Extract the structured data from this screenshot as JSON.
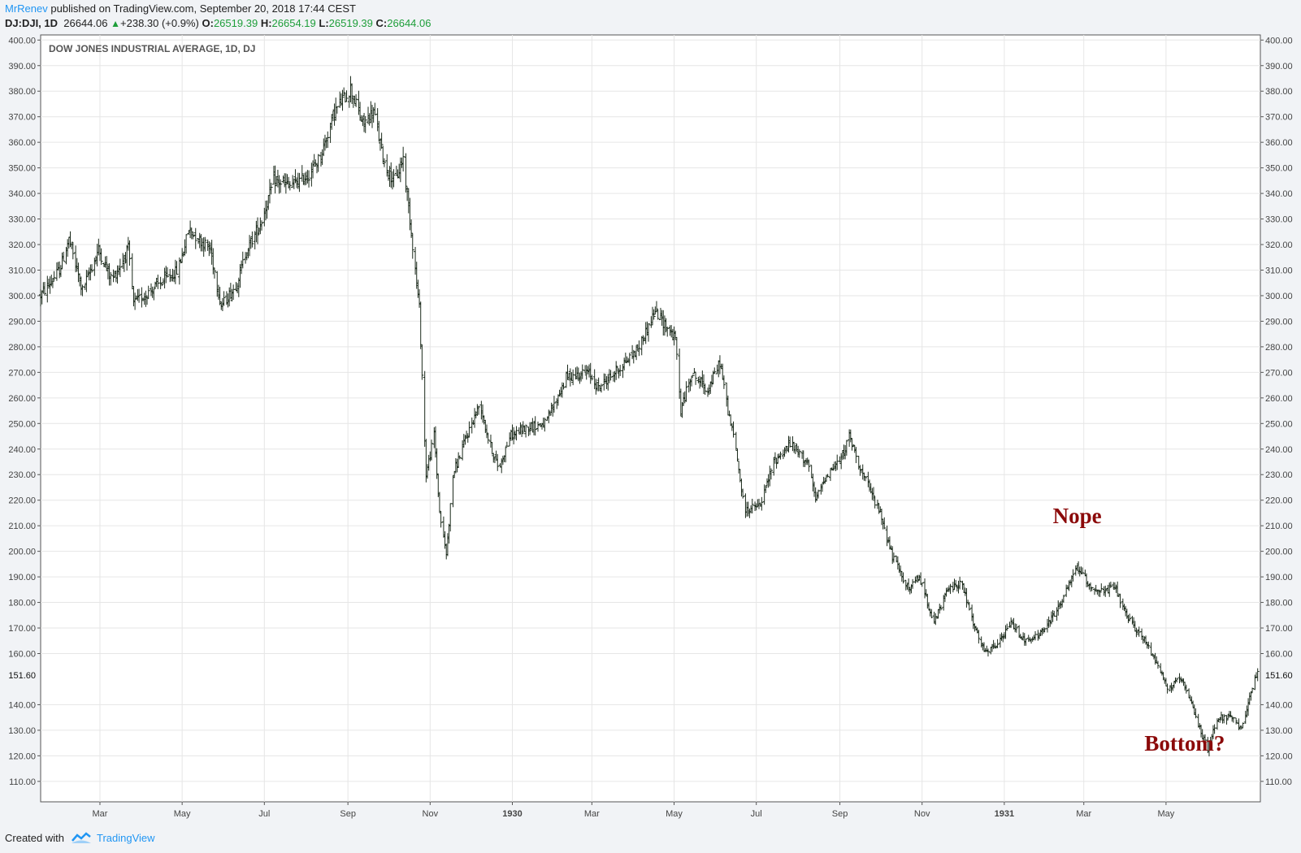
{
  "header": {
    "author": "MrRenev",
    "published_text": "published on TradingView.com, September 20, 2018 17:44 CEST",
    "symbol_line": "DJ:DJI, 1D",
    "last": "26644.06",
    "change": "+238.30 (+0.9%)",
    "o_label": "O:",
    "o_value": "26519.39",
    "h_label": "H:",
    "h_value": "26654.19",
    "l_label": "L:",
    "l_value": "26519.39",
    "c_label": "C:",
    "c_value": "26644.06"
  },
  "footer": {
    "created_with": "Created with",
    "brand": "TradingView"
  },
  "colors": {
    "bar": "#1b2a1b",
    "annotation": "#8b0a0a",
    "grid": "#e6e6e6",
    "axis_text": "#444444",
    "author": "#2196f3",
    "up": "#1e9e3a"
  },
  "chart_data": {
    "type": "ohlc",
    "title": "DOW JONES INDUSTRIAL AVERAGE, 1D, DJ",
    "ylim": [
      102,
      402
    ],
    "y_ticks": [
      "110.00",
      "120.00",
      "130.00",
      "140.00",
      "160.00",
      "170.00",
      "180.00",
      "190.00",
      "200.00",
      "210.00",
      "220.00",
      "230.00",
      "240.00",
      "250.00",
      "260.00",
      "270.00",
      "280.00",
      "290.00",
      "300.00",
      "310.00",
      "320.00",
      "330.00",
      "340.00",
      "350.00",
      "360.00",
      "370.00",
      "380.00",
      "390.00",
      "400.00"
    ],
    "last_price_label": "151.60",
    "last_price": 151.6,
    "x_ticks": [
      {
        "label": "Mar",
        "date": "1929-03-01"
      },
      {
        "label": "May",
        "date": "1929-05-01"
      },
      {
        "label": "Jul",
        "date": "1929-07-01"
      },
      {
        "label": "Sep",
        "date": "1929-09-01"
      },
      {
        "label": "Nov",
        "date": "1929-11-01"
      },
      {
        "label": "1930",
        "date": "1930-01-01",
        "bold": true
      },
      {
        "label": "Mar",
        "date": "1930-03-01"
      },
      {
        "label": "May",
        "date": "1930-05-01"
      },
      {
        "label": "Jul",
        "date": "1930-07-01"
      },
      {
        "label": "Sep",
        "date": "1930-09-01"
      },
      {
        "label": "Nov",
        "date": "1930-11-01"
      },
      {
        "label": "1931",
        "date": "1931-01-01",
        "bold": true
      },
      {
        "label": "Mar",
        "date": "1931-03-01"
      },
      {
        "label": "May",
        "date": "1931-05-01"
      }
    ],
    "x_range": [
      "1929-01-16",
      "1931-07-10"
    ],
    "path_anchors": [
      [
        "1929-01-16",
        300
      ],
      [
        "1929-01-30",
        310
      ],
      [
        "1929-02-06",
        322
      ],
      [
        "1929-02-16",
        302
      ],
      [
        "1929-02-28",
        318
      ],
      [
        "1929-03-10",
        306
      ],
      [
        "1929-03-22",
        318
      ],
      [
        "1929-03-26",
        297
      ],
      [
        "1929-04-10",
        303
      ],
      [
        "1929-04-28",
        310
      ],
      [
        "1929-05-06",
        326
      ],
      [
        "1929-05-22",
        318
      ],
      [
        "1929-05-30",
        296
      ],
      [
        "1929-06-10",
        304
      ],
      [
        "1929-06-18",
        318
      ],
      [
        "1929-06-28",
        328
      ],
      [
        "1929-07-08",
        345
      ],
      [
        "1929-07-20",
        343
      ],
      [
        "1929-07-28",
        345
      ],
      [
        "1929-08-04",
        348
      ],
      [
        "1929-08-12",
        355
      ],
      [
        "1929-08-22",
        372
      ],
      [
        "1929-09-03",
        381
      ],
      [
        "1929-09-12",
        367
      ],
      [
        "1929-09-20",
        372
      ],
      [
        "1929-09-28",
        352
      ],
      [
        "1929-10-06",
        344
      ],
      [
        "1929-10-12",
        354
      ],
      [
        "1929-10-18",
        325
      ],
      [
        "1929-10-24",
        295
      ],
      [
        "1929-10-29",
        230
      ],
      [
        "1929-11-04",
        246
      ],
      [
        "1929-11-08",
        215
      ],
      [
        "1929-11-13",
        199
      ],
      [
        "1929-11-18",
        230
      ],
      [
        "1929-11-28",
        245
      ],
      [
        "1929-12-08",
        258
      ],
      [
        "1929-12-14",
        244
      ],
      [
        "1929-12-22",
        232
      ],
      [
        "1929-12-30",
        245
      ],
      [
        "1930-01-14",
        249
      ],
      [
        "1930-01-26",
        250
      ],
      [
        "1930-02-10",
        268
      ],
      [
        "1930-02-26",
        270
      ],
      [
        "1930-03-06",
        264
      ],
      [
        "1930-03-20",
        271
      ],
      [
        "1930-04-04",
        279
      ],
      [
        "1930-04-17",
        294
      ],
      [
        "1930-05-02",
        283
      ],
      [
        "1930-05-06",
        255
      ],
      [
        "1930-05-14",
        270
      ],
      [
        "1930-05-26",
        263
      ],
      [
        "1930-06-04",
        274
      ],
      [
        "1930-06-10",
        255
      ],
      [
        "1930-06-16",
        240
      ],
      [
        "1930-06-22",
        216
      ],
      [
        "1930-07-04",
        218
      ],
      [
        "1930-07-14",
        235
      ],
      [
        "1930-07-26",
        242
      ],
      [
        "1930-08-08",
        235
      ],
      [
        "1930-08-14",
        220
      ],
      [
        "1930-08-22",
        230
      ],
      [
        "1930-09-02",
        236
      ],
      [
        "1930-09-08",
        245
      ],
      [
        "1930-09-18",
        230
      ],
      [
        "1930-10-01",
        215
      ],
      [
        "1930-10-10",
        198
      ],
      [
        "1930-10-22",
        185
      ],
      [
        "1930-10-30",
        190
      ],
      [
        "1930-11-10",
        172
      ],
      [
        "1930-11-20",
        185
      ],
      [
        "1930-11-30",
        188
      ],
      [
        "1930-12-10",
        170
      ],
      [
        "1930-12-18",
        160
      ],
      [
        "1930-12-28",
        164
      ],
      [
        "1931-01-06",
        172
      ],
      [
        "1931-01-18",
        164
      ],
      [
        "1931-02-01",
        170
      ],
      [
        "1931-02-14",
        182
      ],
      [
        "1931-02-24",
        194
      ],
      [
        "1931-03-06",
        186
      ],
      [
        "1931-03-16",
        184
      ],
      [
        "1931-03-24",
        186
      ],
      [
        "1931-04-02",
        174
      ],
      [
        "1931-04-14",
        166
      ],
      [
        "1931-04-26",
        155
      ],
      [
        "1931-05-02",
        146
      ],
      [
        "1931-05-12",
        150
      ],
      [
        "1931-05-20",
        140
      ],
      [
        "1931-06-01",
        122
      ],
      [
        "1931-06-08",
        135
      ],
      [
        "1931-06-18",
        135
      ],
      [
        "1931-06-26",
        130
      ],
      [
        "1931-07-02",
        144
      ],
      [
        "1931-07-08",
        152
      ]
    ],
    "annotations": [
      {
        "text": "Nope",
        "date": "1931-02-06",
        "value": 211
      },
      {
        "text": "Bottom?",
        "date": "1931-04-15",
        "value": 122
      }
    ]
  }
}
